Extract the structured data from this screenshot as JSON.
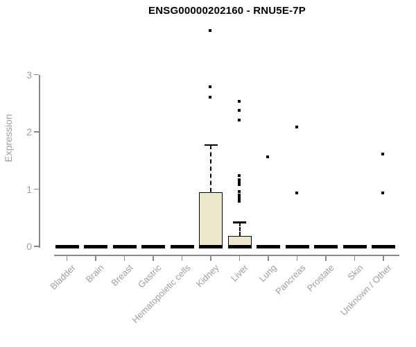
{
  "chart_data": {
    "type": "boxplot",
    "title": "ENSG00000202160 - RNU5E-7P",
    "ylabel": "Expression",
    "xlabel": "",
    "yticks": [
      0,
      1,
      2,
      3
    ],
    "ylim": [
      0,
      3.9
    ],
    "grid": false,
    "legend": false,
    "categories": [
      "Bladder",
      "Brain",
      "Breast",
      "Gastric",
      "Hematopoietic cells",
      "Kidney",
      "Liver",
      "Lung",
      "Pancreas",
      "Prostate",
      "Skin",
      "Unknown / Other"
    ],
    "series": [
      {
        "category": "Bladder",
        "q1": 0,
        "median": 0,
        "q3": 0,
        "whisker_low": 0,
        "whisker_high": 0,
        "outliers": []
      },
      {
        "category": "Brain",
        "q1": 0,
        "median": 0,
        "q3": 0,
        "whisker_low": 0,
        "whisker_high": 0,
        "outliers": []
      },
      {
        "category": "Breast",
        "q1": 0,
        "median": 0,
        "q3": 0,
        "whisker_low": 0,
        "whisker_high": 0,
        "outliers": []
      },
      {
        "category": "Gastric",
        "q1": 0,
        "median": 0,
        "q3": 0,
        "whisker_low": 0,
        "whisker_high": 0,
        "outliers": []
      },
      {
        "category": "Hematopoietic cells",
        "q1": 0,
        "median": 0,
        "q3": 0,
        "whisker_low": 0,
        "whisker_high": 0,
        "outliers": []
      },
      {
        "category": "Kidney",
        "q1": 0,
        "median": 0,
        "q3": 0.95,
        "whisker_low": 0,
        "whisker_high": 1.77,
        "outliers": [
          2.6,
          2.78,
          3.76
        ]
      },
      {
        "category": "Liver",
        "q1": 0,
        "median": 0,
        "q3": 0.18,
        "whisker_low": 0,
        "whisker_high": 0.42,
        "outliers": [
          0.77,
          0.81,
          0.85,
          0.88,
          0.94,
          1.07,
          1.11,
          1.15,
          1.22,
          2.2,
          2.36,
          2.52
        ]
      },
      {
        "category": "Lung",
        "q1": 0,
        "median": 0,
        "q3": 0,
        "whisker_low": 0,
        "whisker_high": 0,
        "outliers": [
          1.55
        ]
      },
      {
        "category": "Pancreas",
        "q1": 0,
        "median": 0,
        "q3": 0,
        "whisker_low": 0,
        "whisker_high": 0,
        "outliers": [
          0.92,
          2.07
        ]
      },
      {
        "category": "Prostate",
        "q1": 0,
        "median": 0,
        "q3": 0,
        "whisker_low": 0,
        "whisker_high": 0,
        "outliers": []
      },
      {
        "category": "Skin",
        "q1": 0,
        "median": 0,
        "q3": 0,
        "whisker_low": 0,
        "whisker_high": 0,
        "outliers": []
      },
      {
        "category": "Unknown / Other",
        "q1": 0,
        "median": 0,
        "q3": 0,
        "whisker_low": 0,
        "whisker_high": 0,
        "outliers": [
          0.92,
          1.6
        ]
      }
    ],
    "colors": {
      "box_fill": "#ECE7CD",
      "box_stroke": "#000000",
      "axis": "#888888",
      "tick_label": "#9e9e9e",
      "title": "#000000"
    }
  }
}
